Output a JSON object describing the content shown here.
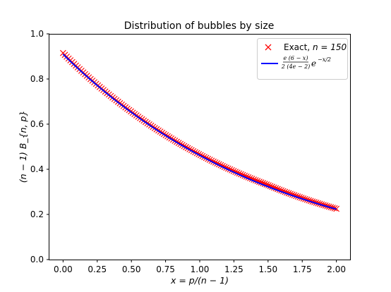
{
  "chart_data": {
    "type": "scatter",
    "title": "Distribution of bubbles by size",
    "xlabel": "x = p/(n − 1)",
    "ylabel": "(n − 1) B_{n, p}",
    "xlim": [
      -0.1,
      2.1
    ],
    "ylim": [
      0.0,
      1.0
    ],
    "xticks": [
      0.0,
      0.25,
      0.5,
      0.75,
      1.0,
      1.25,
      1.5,
      1.75,
      2.0
    ],
    "xtick_labels": [
      "0.00",
      "0.25",
      "0.50",
      "0.75",
      "1.00",
      "1.25",
      "1.50",
      "1.75",
      "2.00"
    ],
    "yticks": [
      0.0,
      0.2,
      0.4,
      0.6,
      0.8,
      1.0
    ],
    "ytick_labels": [
      "0.0",
      "0.2",
      "0.4",
      "0.6",
      "0.8",
      "1.0"
    ],
    "grid": false,
    "legend_position": "top-right",
    "series": [
      {
        "name": "Exact, n = 150",
        "kind": "scatter",
        "marker": "x",
        "color": "#ff0000",
        "x_range": [
          0.0,
          2.0
        ],
        "n_points": 150,
        "x_sample": [
          0.0,
          0.5,
          1.0,
          1.5,
          2.0
        ],
        "y_sample": [
          0.915,
          0.655,
          0.465,
          0.33,
          0.225
        ]
      },
      {
        "name": "e(6 − x) / (2(4e − 2)) · e^(−x/2)",
        "kind": "line",
        "color": "#0000ff",
        "x": [
          0.0,
          0.25,
          0.5,
          0.75,
          1.0,
          1.25,
          1.5,
          1.75,
          2.0
        ],
        "y": [
          0.91,
          0.7716,
          0.6522,
          0.5496,
          0.4617,
          0.3867,
          0.3229,
          0.2689,
          0.2232
        ]
      }
    ],
    "legend": {
      "exact_text": "Exact, ",
      "exact_n": "n = 150",
      "formula_num": "e (6 − x)",
      "formula_den": "2 (4e − 2)",
      "formula_exp_base": "e",
      "formula_exp_power": "−x/2"
    }
  }
}
